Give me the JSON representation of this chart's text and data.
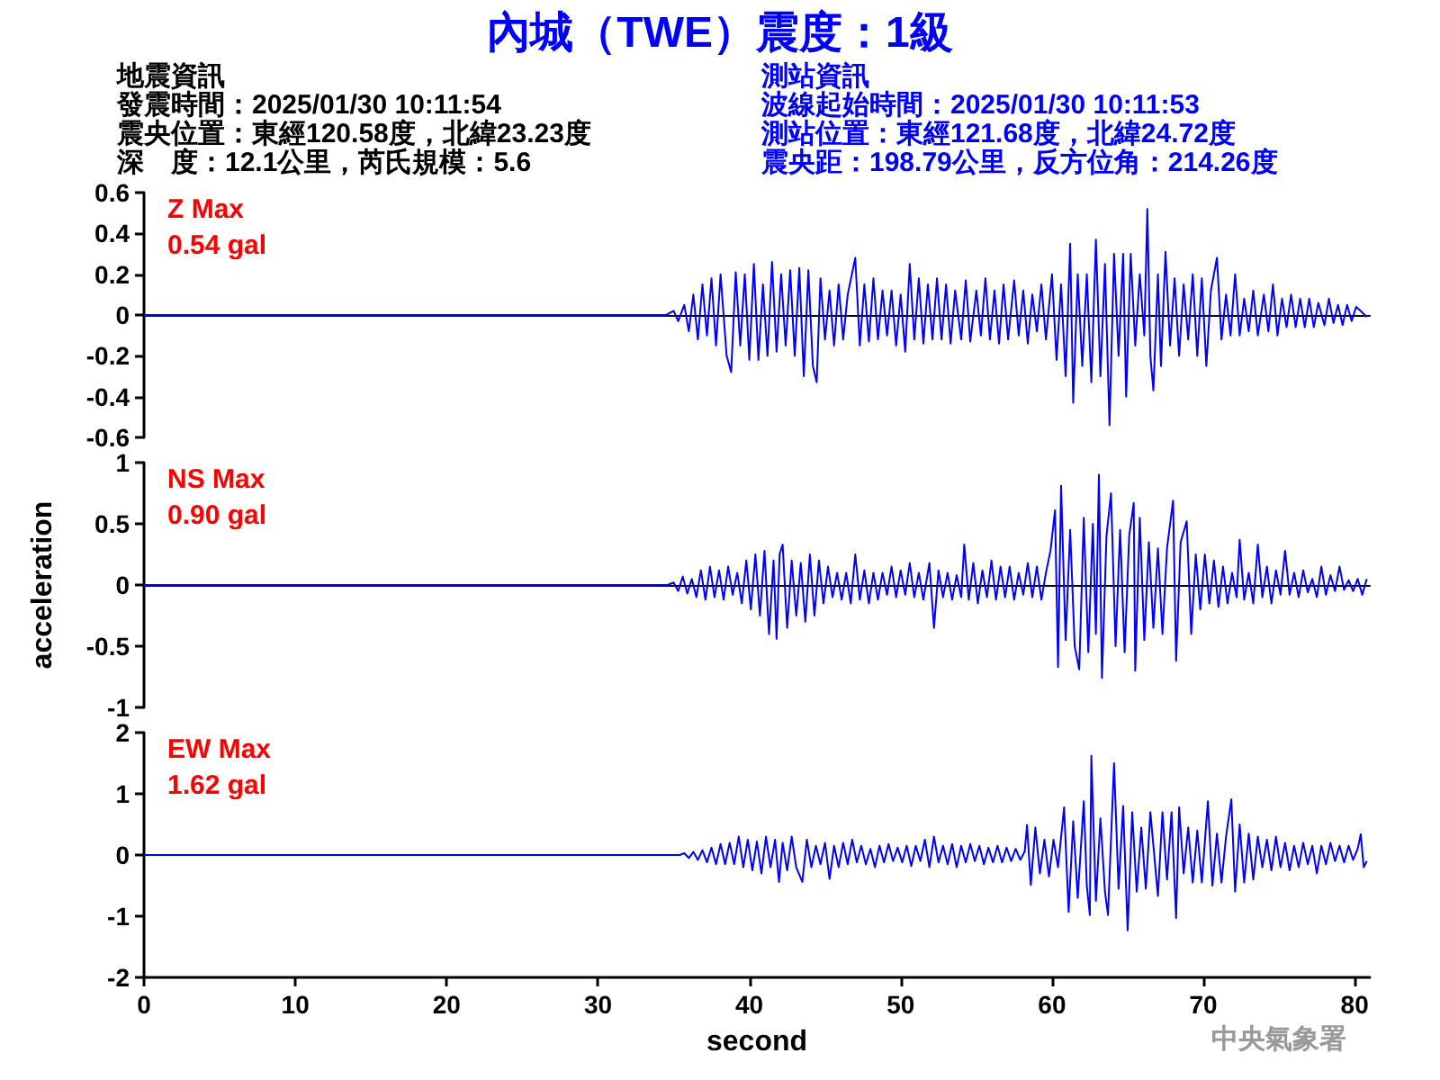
{
  "chart_data": [
    {
      "type": "other",
      "title": "內城（TWE）震度：1級",
      "annotations": [
        "地震資訊",
        "發震時間：2025/01/30 10:11:54",
        "震央位置：東經120.58度，北緯23.23度",
        "深　度：12.1公里，芮氏規模：5.6",
        "測站資訊",
        "波線起始時間：2025/01/30 10:11:53",
        "測站位置：東經121.68度，北緯24.72度",
        "震央距：198.79公里，反方位角：214.26度"
      ]
    },
    {
      "type": "line",
      "annotations": [
        "Z Max",
        "0.54 gal"
      ],
      "xlim": [
        0,
        81
      ],
      "ylim": [
        -0.6,
        0.6
      ],
      "yticks": [
        -0.6,
        -0.4,
        -0.2,
        0,
        0.2,
        0.4,
        0.6
      ],
      "tick_labels": "y",
      "marker": "none",
      "series": [
        {
          "color": "#0000ff",
          "x": [
            0,
            34.5,
            35.0,
            35.3,
            35.7,
            36.0,
            36.3,
            36.6,
            36.9,
            37.2,
            37.5,
            37.8,
            38.1,
            38.5,
            38.8,
            39.1,
            39.4,
            39.7,
            40.0,
            40.3,
            40.6,
            40.9,
            41.2,
            41.5,
            41.8,
            42.1,
            42.4,
            42.7,
            43.0,
            43.3,
            43.6,
            43.9,
            44.2,
            44.45,
            44.7,
            45.0,
            45.3,
            45.6,
            45.9,
            46.2,
            46.5,
            47.0,
            47.3,
            47.6,
            47.9,
            48.2,
            48.5,
            48.8,
            49.1,
            49.4,
            49.7,
            50.0,
            50.3,
            50.6,
            50.9,
            51.2,
            51.5,
            51.8,
            52.1,
            52.4,
            52.7,
            53.0,
            53.3,
            53.6,
            54.0,
            54.3,
            54.6,
            55.0,
            55.3,
            55.6,
            55.9,
            56.2,
            56.5,
            56.8,
            57.1,
            57.5,
            57.8,
            58.1,
            58.4,
            58.7,
            59.0,
            59.3,
            59.6,
            60.0,
            60.3,
            60.6,
            60.9,
            61.2,
            61.4,
            61.7,
            62.0,
            62.3,
            62.6,
            62.9,
            63.2,
            63.5,
            63.8,
            64.1,
            64.4,
            64.7,
            64.9,
            65.2,
            65.5,
            65.8,
            66.1,
            66.3,
            66.5,
            66.7,
            67.0,
            67.2,
            67.5,
            67.8,
            68.1,
            68.4,
            68.7,
            69.0,
            69.3,
            69.6,
            69.9,
            70.2,
            70.5,
            70.9,
            71.2,
            71.5,
            71.8,
            72.1,
            72.4,
            72.7,
            73.0,
            73.3,
            73.6,
            74.0,
            74.3,
            74.6,
            74.9,
            75.2,
            75.5,
            75.8,
            76.1,
            76.4,
            76.7,
            77.0,
            77.3,
            77.6,
            78.0,
            78.3,
            78.6,
            78.9,
            79.2,
            79.5,
            79.8,
            80.1,
            80.4,
            80.8
          ],
          "values": [
            0,
            0,
            0.02,
            -0.03,
            0.05,
            -0.08,
            0.1,
            -0.12,
            0.15,
            -0.1,
            0.18,
            -0.15,
            0.2,
            -0.2,
            -0.28,
            0.21,
            -0.15,
            0.2,
            -0.22,
            0.25,
            -0.22,
            0.15,
            -0.2,
            0.26,
            -0.18,
            0.2,
            -0.15,
            0.22,
            -0.2,
            0.23,
            -0.3,
            0.22,
            -0.25,
            -0.33,
            0.18,
            -0.12,
            0.12,
            -0.15,
            0.15,
            -0.12,
            0.1,
            0.28,
            -0.15,
            0.15,
            -0.13,
            0.18,
            -0.12,
            0.12,
            -0.1,
            0.12,
            -0.15,
            0.1,
            -0.18,
            0.25,
            -0.12,
            0.18,
            -0.14,
            0.15,
            -0.12,
            0.18,
            -0.12,
            0.15,
            -0.14,
            0.12,
            -0.12,
            0.17,
            -0.13,
            0.12,
            -0.1,
            0.18,
            -0.12,
            0.12,
            -0.14,
            0.15,
            -0.12,
            0.17,
            -0.1,
            0.12,
            -0.14,
            0.1,
            -0.08,
            0.15,
            -0.12,
            0.2,
            -0.22,
            0.15,
            -0.3,
            0.35,
            -0.43,
            0.2,
            -0.25,
            0.2,
            -0.33,
            0.37,
            -0.3,
            0.25,
            -0.54,
            0.3,
            -0.2,
            0.3,
            -0.4,
            0.3,
            -0.15,
            0.2,
            -0.1,
            0.52,
            -0.2,
            -0.37,
            0.2,
            -0.25,
            0.31,
            -0.15,
            0.18,
            -0.2,
            0.15,
            -0.12,
            0.2,
            -0.2,
            0.18,
            -0.25,
            0.12,
            0.28,
            -0.12,
            0.1,
            -0.1,
            0.2,
            -0.1,
            0.08,
            -0.08,
            0.12,
            -0.1,
            0.1,
            -0.08,
            0.15,
            -0.1,
            0.08,
            -0.06,
            0.1,
            -0.06,
            0.08,
            -0.06,
            0.08,
            -0.06,
            0.06,
            -0.05,
            0.08,
            -0.04,
            0.05,
            -0.05,
            0.05,
            -0.03,
            0.04,
            0.02,
            -0.01
          ]
        }
      ]
    },
    {
      "type": "line",
      "ylabel": "acceleration",
      "annotations": [
        "NS Max",
        "0.90 gal"
      ],
      "xlim": [
        0,
        81
      ],
      "ylim": [
        -1,
        1
      ],
      "yticks": [
        -1,
        -0.5,
        0,
        0.5,
        1
      ],
      "tick_labels": "y",
      "marker": "none",
      "series": [
        {
          "color": "#0000ff",
          "x": [
            0,
            34.6,
            35.0,
            35.3,
            35.6,
            35.9,
            36.2,
            36.5,
            36.8,
            37.1,
            37.4,
            37.7,
            38.0,
            38.3,
            38.6,
            38.9,
            39.2,
            39.5,
            39.8,
            40.1,
            40.4,
            40.7,
            41.0,
            41.3,
            41.6,
            41.8,
            42.0,
            42.2,
            42.5,
            42.8,
            43.1,
            43.4,
            43.7,
            44.0,
            44.3,
            44.6,
            44.9,
            45.2,
            45.5,
            45.8,
            46.1,
            46.4,
            46.7,
            47.0,
            47.3,
            47.6,
            47.9,
            48.2,
            48.5,
            48.8,
            49.1,
            49.4,
            49.7,
            50.0,
            50.3,
            50.6,
            50.9,
            51.2,
            51.5,
            51.9,
            52.2,
            52.5,
            52.8,
            53.1,
            53.4,
            53.7,
            54.0,
            54.2,
            54.5,
            54.8,
            55.1,
            55.4,
            55.7,
            56.0,
            56.3,
            56.6,
            56.9,
            57.2,
            57.5,
            57.8,
            58.1,
            58.4,
            58.7,
            59.0,
            59.3,
            59.6,
            59.9,
            60.2,
            60.4,
            60.6,
            60.9,
            61.2,
            61.5,
            61.8,
            62.1,
            62.4,
            62.7,
            62.9,
            63.1,
            63.3,
            63.6,
            63.9,
            64.2,
            64.5,
            64.8,
            65.1,
            65.4,
            65.5,
            65.8,
            66.1,
            66.4,
            66.7,
            67.0,
            67.3,
            67.6,
            68.0,
            68.2,
            68.5,
            68.9,
            69.2,
            69.5,
            69.8,
            70.1,
            70.4,
            70.7,
            71.0,
            71.3,
            71.6,
            71.9,
            72.2,
            72.4,
            72.7,
            73.0,
            73.3,
            73.6,
            73.9,
            74.2,
            74.5,
            74.8,
            75.1,
            75.4,
            75.7,
            76.0,
            76.3,
            76.6,
            76.9,
            77.2,
            77.5,
            77.8,
            78.1,
            78.4,
            78.7,
            79.0,
            79.3,
            79.6,
            79.9,
            80.2,
            80.5,
            80.8
          ],
          "values": [
            0,
            0,
            0.02,
            -0.05,
            0.07,
            -0.07,
            0.05,
            -0.1,
            0.12,
            -0.12,
            0.15,
            -0.1,
            0.12,
            -0.12,
            0.15,
            -0.08,
            0.1,
            -0.15,
            0.2,
            -0.2,
            0.25,
            -0.25,
            0.28,
            -0.4,
            0.2,
            -0.44,
            0.25,
            0.33,
            -0.35,
            0.2,
            -0.25,
            0.18,
            -0.3,
            0.25,
            -0.25,
            0.2,
            -0.15,
            0.15,
            -0.1,
            0.1,
            -0.12,
            0.1,
            -0.15,
            0.25,
            -0.12,
            0.12,
            -0.15,
            0.1,
            -0.12,
            0.1,
            -0.08,
            0.15,
            -0.1,
            0.12,
            -0.08,
            0.18,
            -0.1,
            0.1,
            -0.12,
            0.18,
            -0.35,
            0.12,
            -0.1,
            0.1,
            -0.12,
            0.08,
            -0.1,
            0.33,
            -0.12,
            0.18,
            -0.15,
            0.12,
            -0.1,
            0.2,
            -0.12,
            0.15,
            -0.1,
            0.15,
            -0.12,
            0.1,
            -0.08,
            0.18,
            -0.1,
            0.15,
            -0.12,
            0.1,
            0.28,
            0.61,
            -0.67,
            0.81,
            -0.45,
            0.45,
            -0.5,
            -0.69,
            0.55,
            -0.55,
            0.5,
            -0.4,
            0.9,
            -0.76,
            0.4,
            0.75,
            -0.5,
            0.45,
            -0.55,
            0.4,
            0.67,
            -0.7,
            0.55,
            -0.45,
            0.35,
            -0.35,
            0.3,
            -0.4,
            0.3,
            0.69,
            -0.62,
            0.35,
            0.52,
            -0.4,
            0.25,
            -0.2,
            0.25,
            -0.15,
            0.2,
            -0.18,
            0.15,
            -0.15,
            0.1,
            -0.1,
            0.37,
            -0.12,
            0.1,
            -0.15,
            0.33,
            -0.1,
            0.15,
            -0.15,
            0.12,
            -0.08,
            0.28,
            -0.08,
            0.1,
            -0.1,
            0.12,
            -0.06,
            0.05,
            -0.1,
            0.15,
            -0.08,
            0.08,
            -0.05,
            0.15,
            -0.04,
            0.04,
            -0.05,
            0.05,
            -0.08,
            0.05
          ]
        }
      ]
    },
    {
      "type": "line",
      "xlabel": "second",
      "annotations": [
        "EW Max",
        "1.62 gal",
        "中央氣象署"
      ],
      "xlim": [
        0,
        81
      ],
      "xticks": [
        0,
        10,
        20,
        30,
        40,
        50,
        60,
        70,
        80
      ],
      "ylim": [
        -2,
        2
      ],
      "yticks": [
        -2,
        -1,
        0,
        1,
        2
      ],
      "marker": "none",
      "series": [
        {
          "color": "#0000ff",
          "x": [
            0,
            35.4,
            35.7,
            36.0,
            36.3,
            36.6,
            36.9,
            37.2,
            37.5,
            37.8,
            38.1,
            38.4,
            38.7,
            39.0,
            39.3,
            39.6,
            39.9,
            40.2,
            40.5,
            40.8,
            41.1,
            41.4,
            41.7,
            41.96,
            42.2,
            42.5,
            42.8,
            43.1,
            43.5,
            43.8,
            44.1,
            44.4,
            44.7,
            45.0,
            45.3,
            45.6,
            45.9,
            46.2,
            46.5,
            46.8,
            47.1,
            47.4,
            47.7,
            48.0,
            48.3,
            48.6,
            48.9,
            49.2,
            49.5,
            49.8,
            50.1,
            50.4,
            50.7,
            51.0,
            51.3,
            51.6,
            51.9,
            52.2,
            52.5,
            52.8,
            53.1,
            53.4,
            53.7,
            54.0,
            54.3,
            54.6,
            54.9,
            55.2,
            55.5,
            55.8,
            56.1,
            56.4,
            56.7,
            57.0,
            57.3,
            57.6,
            57.9,
            58.2,
            58.35,
            58.6,
            58.9,
            59.2,
            59.5,
            59.8,
            60.1,
            60.4,
            60.8,
            61.1,
            61.4,
            61.7,
            62.1,
            62.3,
            62.5,
            62.6,
            62.9,
            63.2,
            63.5,
            63.7,
            64.1,
            64.4,
            64.7,
            65.0,
            65.3,
            65.6,
            65.9,
            66.2,
            66.5,
            67.0,
            67.3,
            67.6,
            67.9,
            68.2,
            68.4,
            68.7,
            69.0,
            69.3,
            69.6,
            69.9,
            70.3,
            70.6,
            70.9,
            71.2,
            71.5,
            71.85,
            72.1,
            72.4,
            72.7,
            73.0,
            73.3,
            73.6,
            73.9,
            74.2,
            74.5,
            74.8,
            75.1,
            75.4,
            75.7,
            76.0,
            76.3,
            76.6,
            76.9,
            77.2,
            77.5,
            77.8,
            78.1,
            78.4,
            78.7,
            79.0,
            79.3,
            79.6,
            79.9,
            80.2,
            80.4,
            80.6,
            80.8
          ],
          "values": [
            0,
            0,
            0.03,
            -0.05,
            0.05,
            -0.08,
            0.08,
            -0.12,
            0.12,
            -0.15,
            0.18,
            -0.15,
            0.2,
            -0.15,
            0.3,
            -0.2,
            0.25,
            -0.25,
            0.22,
            -0.3,
            0.3,
            -0.2,
            0.25,
            -0.44,
            0.2,
            -0.25,
            0.3,
            -0.2,
            -0.44,
            0.25,
            -0.2,
            0.15,
            -0.15,
            0.2,
            -0.39,
            0.15,
            -0.2,
            0.2,
            -0.15,
            0.25,
            -0.12,
            0.15,
            -0.15,
            0.1,
            -0.2,
            0.15,
            -0.12,
            0.18,
            -0.1,
            0.12,
            -0.12,
            0.15,
            -0.18,
            0.15,
            -0.1,
            0.25,
            -0.2,
            0.3,
            -0.12,
            0.15,
            -0.15,
            0.18,
            -0.2,
            0.15,
            -0.12,
            0.18,
            -0.1,
            0.15,
            -0.15,
            0.12,
            -0.12,
            0.15,
            -0.12,
            0.12,
            -0.1,
            0.1,
            -0.08,
            0.06,
            0.49,
            -0.49,
            0.45,
            -0.3,
            0.25,
            -0.35,
            0.25,
            -0.2,
            0.78,
            -0.93,
            0.55,
            -0.7,
            0.88,
            -0.5,
            -0.98,
            1.62,
            -0.75,
            0.6,
            -0.6,
            -0.98,
            1.5,
            -0.55,
            0.8,
            -1.23,
            0.7,
            -0.6,
            0.45,
            -0.55,
            0.7,
            -0.67,
            0.7,
            -0.4,
            0.7,
            -1.03,
            0.78,
            -0.3,
            0.45,
            -0.45,
            0.4,
            -0.45,
            0.88,
            -0.5,
            0.35,
            -0.45,
            0.3,
            0.91,
            -0.6,
            0.5,
            -0.45,
            0.35,
            -0.4,
            0.3,
            -0.2,
            0.25,
            -0.25,
            0.3,
            -0.2,
            0.2,
            -0.25,
            0.15,
            -0.2,
            0.2,
            -0.15,
            0.15,
            -0.3,
            0.15,
            -0.15,
            0.2,
            -0.1,
            0.15,
            -0.12,
            0.15,
            -0.08,
            0.1,
            0.34,
            -0.2,
            -0.1
          ]
        }
      ]
    }
  ]
}
